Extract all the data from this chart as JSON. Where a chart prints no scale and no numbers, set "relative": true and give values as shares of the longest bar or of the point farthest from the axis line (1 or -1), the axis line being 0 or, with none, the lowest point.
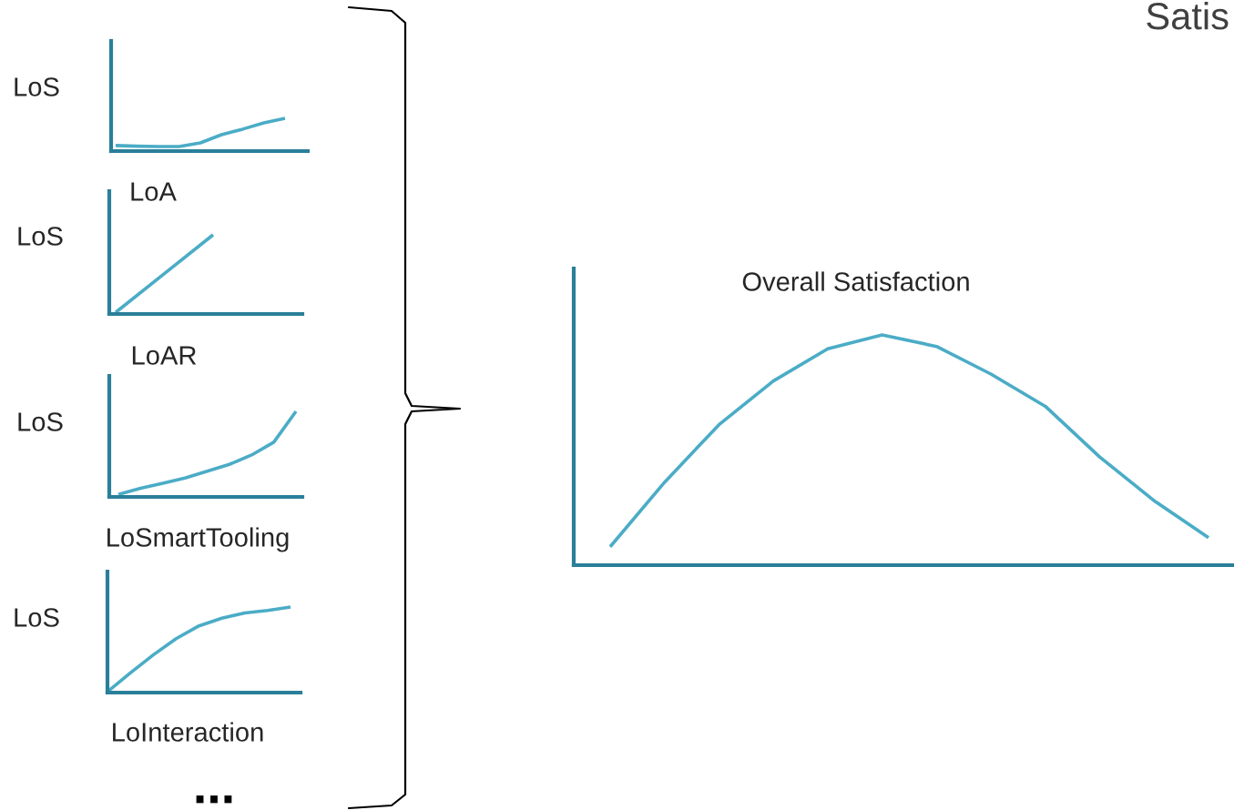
{
  "chart_data": [
    {
      "type": "line",
      "ylabel": "LoS",
      "xlabel": "LoA",
      "relative": true,
      "categories": [
        null,
        null,
        null,
        null,
        null,
        null,
        null,
        null,
        null
      ],
      "series": [
        {
          "color": "#4bacc6",
          "values": [
            0.17,
            0.15,
            0.14,
            0.14,
            0.25,
            0.5,
            0.67,
            0.86,
            1
          ]
        }
      ]
    },
    {
      "type": "line",
      "ylabel": "LoS",
      "xlabel": "LoAR",
      "relative": true,
      "categories": [
        null,
        null,
        null
      ],
      "series": [
        {
          "color": "#4bacc6",
          "values": [
            0.02,
            0.51,
            1
          ]
        }
      ]
    },
    {
      "type": "line",
      "ylabel": "LoS",
      "xlabel": "LoSmartTooling",
      "relative": true,
      "categories": [
        null,
        null,
        null,
        null,
        null,
        null,
        null,
        null,
        null
      ],
      "series": [
        {
          "color": "#4bacc6",
          "values": [
            0.03,
            0.1,
            0.16,
            0.22,
            0.3,
            0.38,
            0.49,
            0.64,
            1
          ]
        }
      ]
    },
    {
      "type": "line",
      "ylabel": "LoS",
      "xlabel": "LoInteraction",
      "relative": true,
      "annotations": [
        "..."
      ],
      "categories": [
        null,
        null,
        null,
        null,
        null,
        null,
        null,
        null,
        null
      ],
      "series": [
        {
          "color": "#4bacc6",
          "values": [
            0.01,
            0.23,
            0.44,
            0.63,
            0.78,
            0.87,
            0.93,
            0.96,
            1
          ]
        }
      ]
    },
    {
      "type": "line",
      "title": "Overall Satisfaction",
      "annotations": [
        "Satis"
      ],
      "relative": true,
      "categories": [
        null,
        null,
        null,
        null,
        null,
        null,
        null,
        null,
        null,
        null,
        null,
        null
      ],
      "series": [
        {
          "color": "#4bacc6",
          "values": [
            0.08,
            0.36,
            0.61,
            0.8,
            0.94,
            1,
            0.95,
            0.83,
            0.69,
            0.47,
            0.28,
            0.12
          ]
        }
      ]
    }
  ]
}
